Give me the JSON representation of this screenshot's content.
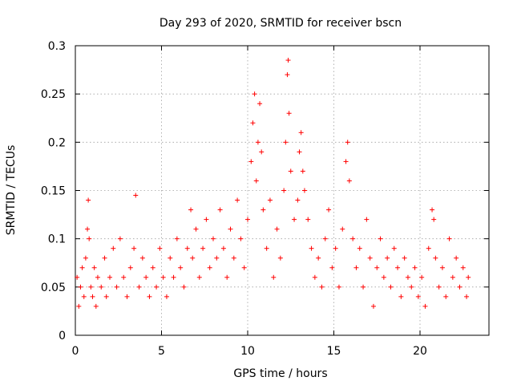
{
  "chart_data": {
    "type": "scatter",
    "title": "Day 293 of 2020, SRMTID for receiver bscn",
    "xlabel": "GPS time / hours",
    "ylabel": "SRMTID / TECUs",
    "xlim": [
      0,
      24
    ],
    "ylim": [
      0,
      0.3
    ],
    "x_ticks": [
      0,
      5,
      10,
      15,
      20
    ],
    "x_tick_labels": [
      "0",
      "5",
      "10",
      "15",
      "20"
    ],
    "y_ticks": [
      0,
      0.05,
      0.1,
      0.15,
      0.2,
      0.25,
      0.3
    ],
    "y_tick_labels": [
      "0",
      "0.05",
      "0.1",
      "0.15",
      "0.2",
      "0.25",
      "0.3"
    ],
    "grid": true,
    "marker": "+",
    "series": [
      {
        "name": "SRMTID",
        "color": "#ff0000",
        "points": [
          [
            0.1,
            0.06
          ],
          [
            0.2,
            0.03
          ],
          [
            0.3,
            0.05
          ],
          [
            0.4,
            0.07
          ],
          [
            0.5,
            0.04
          ],
          [
            0.6,
            0.08
          ],
          [
            0.7,
            0.11
          ],
          [
            0.75,
            0.14
          ],
          [
            0.8,
            0.1
          ],
          [
            0.9,
            0.05
          ],
          [
            1.0,
            0.04
          ],
          [
            1.1,
            0.07
          ],
          [
            1.2,
            0.03
          ],
          [
            1.3,
            0.06
          ],
          [
            1.5,
            0.05
          ],
          [
            1.7,
            0.08
          ],
          [
            1.8,
            0.04
          ],
          [
            2.0,
            0.06
          ],
          [
            2.2,
            0.09
          ],
          [
            2.4,
            0.05
          ],
          [
            2.6,
            0.1
          ],
          [
            2.8,
            0.06
          ],
          [
            3.0,
            0.04
          ],
          [
            3.2,
            0.07
          ],
          [
            3.4,
            0.09
          ],
          [
            3.5,
            0.145
          ],
          [
            3.7,
            0.05
          ],
          [
            3.9,
            0.08
          ],
          [
            4.1,
            0.06
          ],
          [
            4.3,
            0.04
          ],
          [
            4.5,
            0.07
          ],
          [
            4.7,
            0.05
          ],
          [
            4.9,
            0.09
          ],
          [
            5.1,
            0.06
          ],
          [
            5.3,
            0.04
          ],
          [
            5.5,
            0.08
          ],
          [
            5.7,
            0.06
          ],
          [
            5.9,
            0.1
          ],
          [
            6.1,
            0.07
          ],
          [
            6.3,
            0.05
          ],
          [
            6.5,
            0.09
          ],
          [
            6.7,
            0.13
          ],
          [
            6.8,
            0.08
          ],
          [
            7.0,
            0.11
          ],
          [
            7.2,
            0.06
          ],
          [
            7.4,
            0.09
          ],
          [
            7.6,
            0.12
          ],
          [
            7.8,
            0.07
          ],
          [
            8.0,
            0.1
          ],
          [
            8.2,
            0.08
          ],
          [
            8.4,
            0.13
          ],
          [
            8.6,
            0.09
          ],
          [
            8.8,
            0.06
          ],
          [
            9.0,
            0.11
          ],
          [
            9.2,
            0.08
          ],
          [
            9.4,
            0.14
          ],
          [
            9.6,
            0.1
          ],
          [
            9.8,
            0.07
          ],
          [
            10.0,
            0.12
          ],
          [
            10.2,
            0.18
          ],
          [
            10.3,
            0.22
          ],
          [
            10.4,
            0.25
          ],
          [
            10.5,
            0.16
          ],
          [
            10.6,
            0.2
          ],
          [
            10.7,
            0.24
          ],
          [
            10.8,
            0.19
          ],
          [
            10.9,
            0.13
          ],
          [
            11.1,
            0.09
          ],
          [
            11.3,
            0.14
          ],
          [
            11.5,
            0.06
          ],
          [
            11.7,
            0.11
          ],
          [
            11.9,
            0.08
          ],
          [
            12.1,
            0.15
          ],
          [
            12.2,
            0.2
          ],
          [
            12.3,
            0.27
          ],
          [
            12.35,
            0.285
          ],
          [
            12.4,
            0.23
          ],
          [
            12.5,
            0.17
          ],
          [
            12.7,
            0.12
          ],
          [
            12.9,
            0.14
          ],
          [
            13.0,
            0.19
          ],
          [
            13.1,
            0.21
          ],
          [
            13.2,
            0.17
          ],
          [
            13.3,
            0.15
          ],
          [
            13.5,
            0.12
          ],
          [
            13.7,
            0.09
          ],
          [
            13.9,
            0.06
          ],
          [
            14.1,
            0.08
          ],
          [
            14.3,
            0.05
          ],
          [
            14.5,
            0.1
          ],
          [
            14.7,
            0.13
          ],
          [
            14.9,
            0.07
          ],
          [
            15.1,
            0.09
          ],
          [
            15.3,
            0.05
          ],
          [
            15.5,
            0.11
          ],
          [
            15.7,
            0.18
          ],
          [
            15.8,
            0.2
          ],
          [
            15.9,
            0.16
          ],
          [
            16.1,
            0.1
          ],
          [
            16.3,
            0.07
          ],
          [
            16.5,
            0.09
          ],
          [
            16.7,
            0.05
          ],
          [
            16.9,
            0.12
          ],
          [
            17.1,
            0.08
          ],
          [
            17.3,
            0.03
          ],
          [
            17.5,
            0.07
          ],
          [
            17.7,
            0.1
          ],
          [
            17.9,
            0.06
          ],
          [
            18.1,
            0.08
          ],
          [
            18.3,
            0.05
          ],
          [
            18.5,
            0.09
          ],
          [
            18.7,
            0.07
          ],
          [
            18.9,
            0.04
          ],
          [
            19.1,
            0.08
          ],
          [
            19.3,
            0.06
          ],
          [
            19.5,
            0.05
          ],
          [
            19.7,
            0.07
          ],
          [
            19.9,
            0.04
          ],
          [
            20.1,
            0.06
          ],
          [
            20.3,
            0.03
          ],
          [
            20.5,
            0.09
          ],
          [
            20.7,
            0.13
          ],
          [
            20.8,
            0.12
          ],
          [
            20.9,
            0.08
          ],
          [
            21.1,
            0.05
          ],
          [
            21.3,
            0.07
          ],
          [
            21.5,
            0.04
          ],
          [
            21.7,
            0.1
          ],
          [
            21.9,
            0.06
          ],
          [
            22.1,
            0.08
          ],
          [
            22.3,
            0.05
          ],
          [
            22.5,
            0.07
          ],
          [
            22.7,
            0.04
          ],
          [
            22.8,
            0.06
          ]
        ]
      }
    ]
  }
}
